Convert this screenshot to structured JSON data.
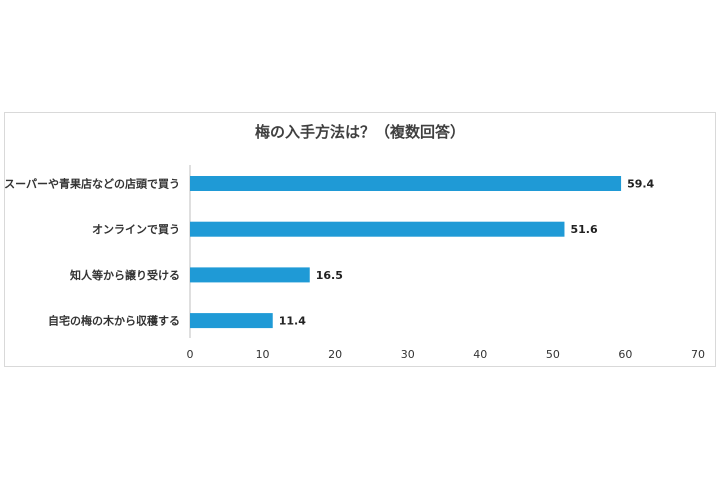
{
  "chart_data": {
    "type": "bar",
    "orientation": "horizontal",
    "title": "梅の入手方法は？（複数回答）",
    "categories": [
      "スーパーや青果店などの店頭で買う",
      "オンラインで買う",
      "知人等から譲り受ける",
      "自宅の梅の木から収穫する"
    ],
    "values": [
      59.4,
      51.6,
      16.5,
      11.4
    ],
    "value_labels": [
      "59.4",
      "51.6",
      "16.5",
      "11.4"
    ],
    "xlim": [
      0,
      70
    ],
    "ticks": [
      0,
      10,
      20,
      30,
      40,
      50,
      60,
      70
    ],
    "tick_labels": [
      "0",
      "10",
      "20",
      "30",
      "40",
      "50",
      "60",
      "70"
    ],
    "bar_color": "#1f9ad6",
    "grid": false,
    "legend": "none"
  }
}
